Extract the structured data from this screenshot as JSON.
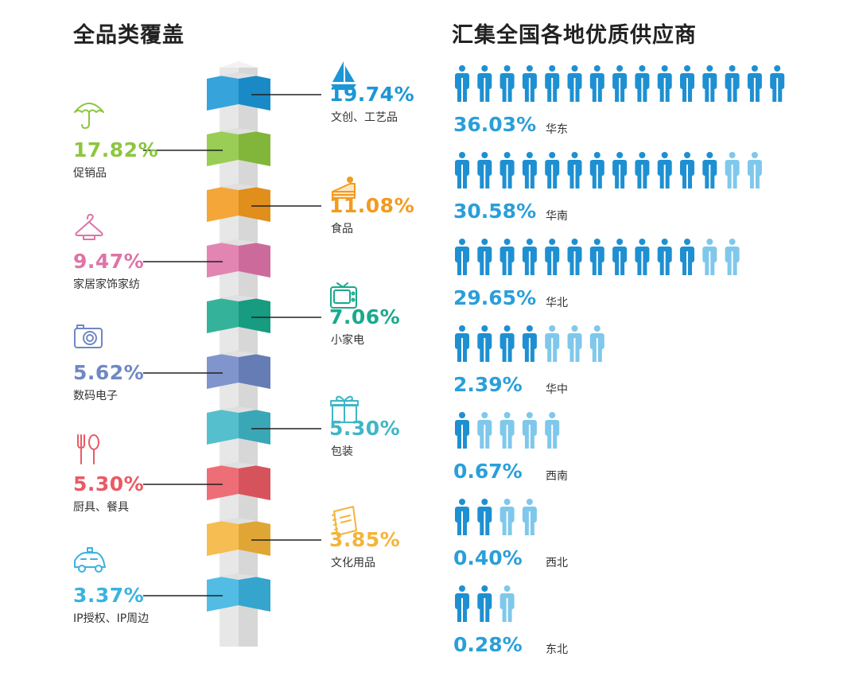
{
  "left_title": "全品类覆盖",
  "right_title": "汇集全国各地优质供应商",
  "colors": {
    "person_dark": "#1e90d2",
    "person_light": "#7fc8ec",
    "region_text": "#2a9fd9"
  },
  "chart_data": [
    {
      "type": "bar",
      "title": "全品类覆盖",
      "categories": [
        "文创、工艺品",
        "促销品",
        "食品",
        "家居家饰家纺",
        "小家电",
        "数码电子",
        "包装",
        "厨具、餐具",
        "文化用品",
        "IP授权、IP周边"
      ],
      "series": [
        {
          "values": [
            19.74,
            17.82,
            11.08,
            9.47,
            7.06,
            5.62,
            5.3,
            5.3,
            3.85,
            3.37
          ]
        }
      ],
      "labels": [
        "19.74%",
        "17.82%",
        "11.08%",
        "9.47%",
        "7.06%",
        "5.62%",
        "5.30%",
        "5.30%",
        "3.85%",
        "3.37%"
      ],
      "colors": [
        "#1b96d6",
        "#8cc63f",
        "#f39a1e",
        "#de74a8",
        "#19a98c",
        "#6f87c4",
        "#3fb6c6",
        "#ea5a64",
        "#f4b43a",
        "#3ab3e0"
      ],
      "icons": [
        "sailboat-icon",
        "umbrella-icon",
        "cake-icon",
        "hanger-icon",
        "tv-icon",
        "camera-icon",
        "gift-icon",
        "utensils-icon",
        "notebook-icon",
        "car-icon"
      ]
    },
    {
      "type": "bar",
      "title": "汇集全国各地优质供应商",
      "categories": [
        "华东",
        "华南",
        "华北",
        "华中",
        "西南",
        "西北",
        "东北"
      ],
      "series": [
        {
          "values": [
            36.03,
            30.58,
            29.65,
            2.39,
            0.67,
            0.4,
            0.28
          ]
        }
      ],
      "labels": [
        "36.03%",
        "30.58%",
        "29.65%",
        "2.39%",
        "0.67%",
        "0.40%",
        "0.28%"
      ],
      "person_counts": [
        {
          "dark": 15,
          "light": 0
        },
        {
          "dark": 12,
          "light": 2
        },
        {
          "dark": 11,
          "light": 2
        },
        {
          "dark": 4,
          "light": 3
        },
        {
          "dark": 1,
          "light": 4
        },
        {
          "dark": 2,
          "light": 2
        },
        {
          "dark": 2,
          "light": 1
        }
      ]
    }
  ]
}
